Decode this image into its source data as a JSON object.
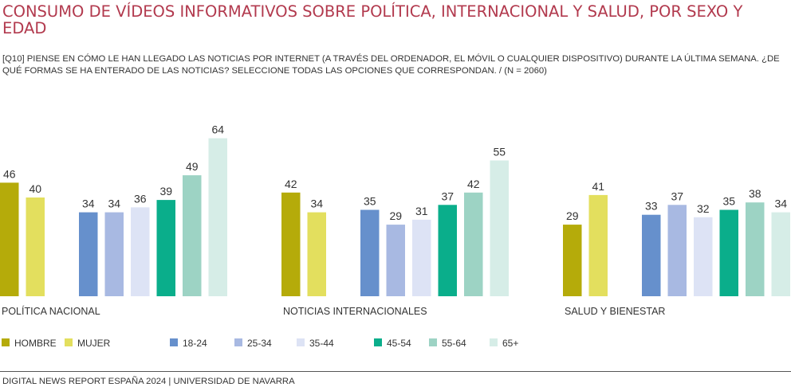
{
  "title": "CONSUMO DE VÍDEOS INFORMATIVOS SOBRE POLÍTICA, INTERNACIONAL Y SALUD, POR SEXO Y EDAD",
  "subtitle": "[Q10] PIENSE EN CÓMO LE HAN LLEGADO LAS NOTICIAS POR INTERNET (A TRAVÉS DEL ORDENADOR, EL MÓVIL O CUALQUIER DISPOSITIVO) DURANTE LA ÚLTIMA SEMANA. ¿DE QUÉ FORMAS SE HA ENTERADO DE LAS NOTICIAS? SELECCIONE TODAS LAS OPCIONES QUE CORRESPONDAN. / (N = 2060)",
  "footer": "DIGITAL NEWS REPORT ESPAÑA 2024 | UNIVERSIDAD DE NAVARRA",
  "chart_data": {
    "type": "bar",
    "categories": [
      "POLÍTICA NACIONAL",
      "NOTICIAS INTERNACIONALES",
      "SALUD Y BIENESTAR"
    ],
    "series": [
      {
        "name": "HOMBRE",
        "color": "#b5ab0a",
        "values": [
          46,
          42,
          29
        ]
      },
      {
        "name": "MUJER",
        "color": "#e3df5e",
        "values": [
          40,
          34,
          41
        ]
      },
      {
        "name": "18-24",
        "color": "#6690cc",
        "values": [
          34,
          35,
          33
        ]
      },
      {
        "name": "25-34",
        "color": "#a8b9e2",
        "values": [
          34,
          29,
          37
        ]
      },
      {
        "name": "35-44",
        "color": "#dde3f5",
        "values": [
          36,
          31,
          32
        ]
      },
      {
        "name": "45-54",
        "color": "#0aae8b",
        "values": [
          39,
          37,
          35
        ]
      },
      {
        "name": "55-64",
        "color": "#9dd3c4",
        "values": [
          49,
          42,
          38
        ]
      },
      {
        "name": "65+",
        "color": "#d6ede7",
        "values": [
          64,
          55,
          34
        ]
      }
    ],
    "ylim": [
      0,
      70
    ],
    "grid": false,
    "legend_position": "bottom",
    "data_labels": true
  }
}
